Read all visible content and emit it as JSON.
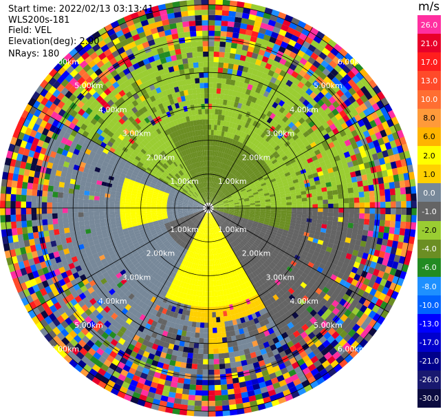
{
  "header": {
    "start_time": "Start time: 2022/02/13 03:13:41",
    "instrument": "WLS200s-181",
    "field": "Field: VEL",
    "elevation": "Elevation(deg): 2.00",
    "nrays": "NRays: 180"
  },
  "chart_data": {
    "type": "heatmap",
    "projection": "polar-ppi",
    "field": "VEL",
    "units": "m/s",
    "n_rays": 180,
    "elevation_deg": 2.0,
    "range_rings_km": [
      1.0,
      2.0,
      3.0,
      4.0,
      5.0,
      6.0
    ],
    "ring_labels": [
      "1.00km",
      "2.00km",
      "3.00km",
      "4.00km",
      "5.00km",
      "6.00km"
    ],
    "spokes_deg": [
      0,
      30,
      60,
      90,
      120,
      150,
      180,
      210,
      240,
      270,
      300,
      330
    ],
    "colorbar": {
      "unit_label": "m/s",
      "ticks": [
        "26.0",
        "21.0",
        "17.0",
        "13.0",
        "10.0",
        "8.0",
        "6.0",
        "2.0",
        "1.0",
        "0.0",
        "-1.0",
        "-2.0",
        "-4.0",
        "-6.0",
        "-8.0",
        "-10.0",
        "-13.0",
        "-17.0",
        "-21.0",
        "-26.0",
        "-30.0"
      ],
      "colors": [
        "#ff2fa0",
        "#e8002a",
        "#ff1e1e",
        "#ff4a2a",
        "#ff6e32",
        "#ff9a3a",
        "#ffb400",
        "#ffff00",
        "#ffd000",
        "#778899",
        "#646464",
        "#9acd32",
        "#6b8e23",
        "#228b22",
        "#1e90ff",
        "#0064ff",
        "#0000ff",
        "#0000cd",
        "#00008b",
        "#191970",
        "#0b0b40"
      ]
    }
  }
}
